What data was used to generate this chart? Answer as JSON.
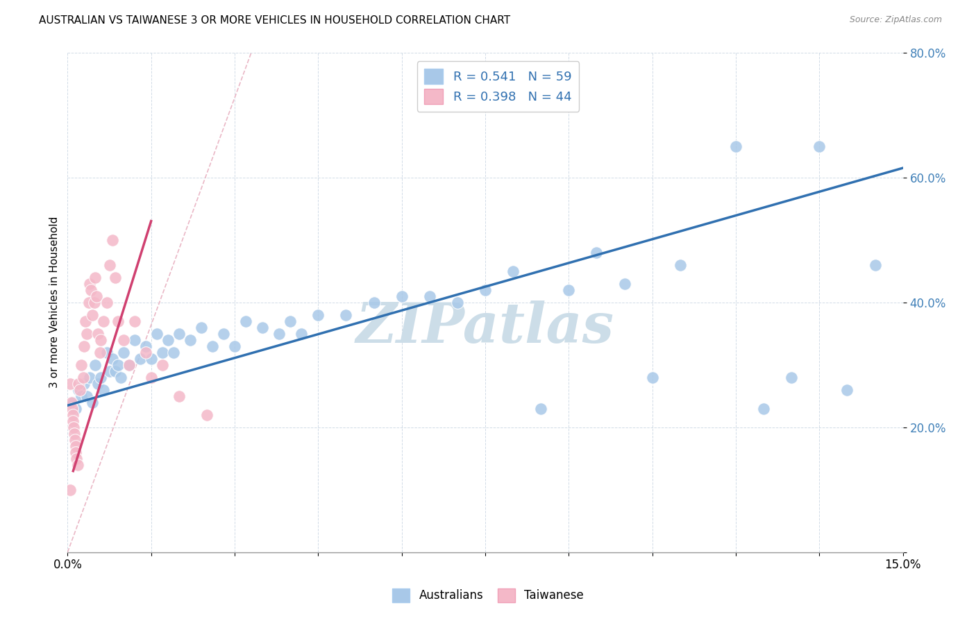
{
  "title": "AUSTRALIAN VS TAIWANESE 3 OR MORE VEHICLES IN HOUSEHOLD CORRELATION CHART",
  "source": "Source: ZipAtlas.com",
  "ylabel": "3 or more Vehicles in Household",
  "xmin": 0.0,
  "xmax": 15.0,
  "ymin": 0.0,
  "ymax": 80.0,
  "blue_R": 0.541,
  "blue_N": 59,
  "pink_R": 0.398,
  "pink_N": 44,
  "blue_color": "#a8c8e8",
  "pink_color": "#f4b8c8",
  "blue_line_color": "#3070b0",
  "pink_line_color": "#d04070",
  "diag_line_color": "#e8b0c0",
  "watermark": "ZIPatlas",
  "watermark_color": "#ccdde8",
  "blue_scatter_x": [
    0.1,
    0.15,
    0.2,
    0.25,
    0.3,
    0.35,
    0.4,
    0.45,
    0.5,
    0.55,
    0.6,
    0.65,
    0.7,
    0.75,
    0.8,
    0.85,
    0.9,
    0.95,
    1.0,
    1.1,
    1.2,
    1.3,
    1.4,
    1.5,
    1.6,
    1.7,
    1.8,
    1.9,
    2.0,
    2.2,
    2.4,
    2.6,
    2.8,
    3.0,
    3.2,
    3.5,
    3.8,
    4.0,
    4.2,
    4.5,
    5.0,
    5.5,
    6.0,
    6.5,
    7.0,
    7.5,
    8.0,
    8.5,
    9.0,
    9.5,
    10.0,
    10.5,
    11.0,
    12.0,
    12.5,
    13.0,
    13.5,
    14.0,
    14.5
  ],
  "blue_scatter_y": [
    24,
    23,
    26,
    25,
    27,
    25,
    28,
    24,
    30,
    27,
    28,
    26,
    32,
    29,
    31,
    29,
    30,
    28,
    32,
    30,
    34,
    31,
    33,
    31,
    35,
    32,
    34,
    32,
    35,
    34,
    36,
    33,
    35,
    33,
    37,
    36,
    35,
    37,
    35,
    38,
    38,
    40,
    41,
    41,
    40,
    42,
    45,
    23,
    42,
    48,
    43,
    28,
    46,
    65,
    23,
    28,
    65,
    26,
    46
  ],
  "pink_scatter_x": [
    0.05,
    0.07,
    0.08,
    0.09,
    0.1,
    0.11,
    0.12,
    0.13,
    0.14,
    0.15,
    0.16,
    0.18,
    0.2,
    0.22,
    0.25,
    0.28,
    0.3,
    0.32,
    0.35,
    0.38,
    0.4,
    0.42,
    0.45,
    0.48,
    0.5,
    0.52,
    0.55,
    0.58,
    0.6,
    0.65,
    0.7,
    0.75,
    0.8,
    0.85,
    0.9,
    1.0,
    1.1,
    1.2,
    1.4,
    1.5,
    1.7,
    2.0,
    2.5,
    0.05
  ],
  "pink_scatter_y": [
    27,
    24,
    23,
    22,
    21,
    20,
    19,
    18,
    17,
    16,
    15,
    14,
    27,
    26,
    30,
    28,
    33,
    37,
    35,
    40,
    43,
    42,
    38,
    40,
    44,
    41,
    35,
    32,
    34,
    37,
    40,
    46,
    50,
    44,
    37,
    34,
    30,
    37,
    32,
    28,
    30,
    25,
    22,
    10
  ],
  "blue_line_x0": 0.0,
  "blue_line_y0": 23.5,
  "blue_line_x1": 15.0,
  "blue_line_y1": 61.5,
  "pink_line_x0": 0.1,
  "pink_line_y0": 13.0,
  "pink_line_x1": 1.5,
  "pink_line_y1": 53.0,
  "diag_x0": 0.0,
  "diag_y0": 0.0,
  "diag_x1": 3.3,
  "diag_y1": 80.0
}
